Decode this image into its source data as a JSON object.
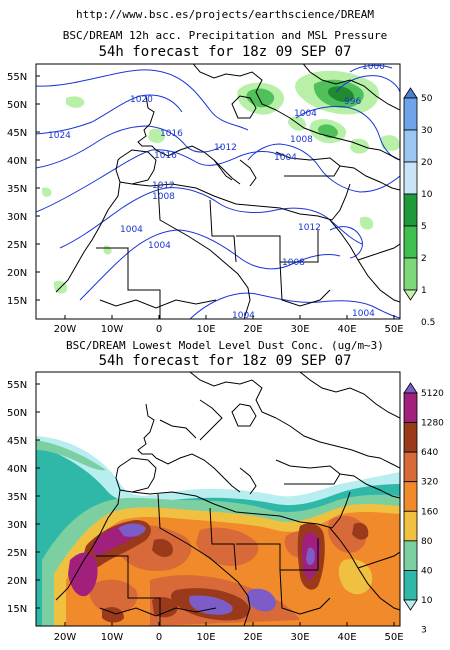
{
  "header": {
    "url": "http://www.bsc.es/projects/earthscience/DREAM"
  },
  "panel_top": {
    "title_line1": "BSC/DREAM 12h acc. Precipitation and MSL Pressure",
    "title_line2": "54h forecast for 18z 09 SEP 07",
    "lat_labels": [
      "55N",
      "50N",
      "45N",
      "40N",
      "35N",
      "30N",
      "25N",
      "20N",
      "15N"
    ],
    "lon_labels": [
      "20W",
      "10W",
      "0",
      "10E",
      "20E",
      "30E",
      "40E",
      "50E"
    ],
    "isobar_labels": [
      "1020",
      "1024",
      "1016",
      "1016",
      "1012",
      "1012",
      "1012",
      "1008",
      "1008",
      "1004",
      "1004",
      "1004",
      "1004",
      "1004",
      "1004",
      "1008",
      "996",
      "1000"
    ],
    "colorbar": {
      "labels": [
        "50",
        "30",
        "20",
        "10",
        "5",
        "2",
        "1",
        "0.5"
      ],
      "colors": [
        "#4a7fd4",
        "#6fa3ea",
        "#9cc6f2",
        "#c9e3f7",
        "#1f9a3a",
        "#3fbf4f",
        "#7dd87a",
        "#c8f2b0"
      ]
    }
  },
  "panel_bottom": {
    "title_line1": "BSC/DREAM Lowest Model Level Dust Conc. (ug/m~3)",
    "title_line2": "54h forecast for 18z 09 SEP 07",
    "lat_labels": [
      "55N",
      "50N",
      "45N",
      "40N",
      "35N",
      "30N",
      "25N",
      "20N",
      "15N"
    ],
    "lon_labels": [
      "20W",
      "10W",
      "0",
      "10E",
      "20E",
      "30E",
      "40E",
      "50E"
    ],
    "colorbar": {
      "labels": [
        "5120",
        "1280",
        "640",
        "320",
        "160",
        "80",
        "40",
        "10",
        "3"
      ],
      "colors": [
        "#7c5dc8",
        "#a0207c",
        "#9a3a1a",
        "#d86a3a",
        "#f08a2a",
        "#f0c040",
        "#7ccfa0",
        "#2fb8a8",
        "#b8eef0"
      ]
    }
  },
  "colors": {
    "isobar": "#1a35d6",
    "precip_light": "#b8f0a8",
    "precip_mid": "#4fc05a",
    "precip_dark": "#1f8a2f"
  }
}
